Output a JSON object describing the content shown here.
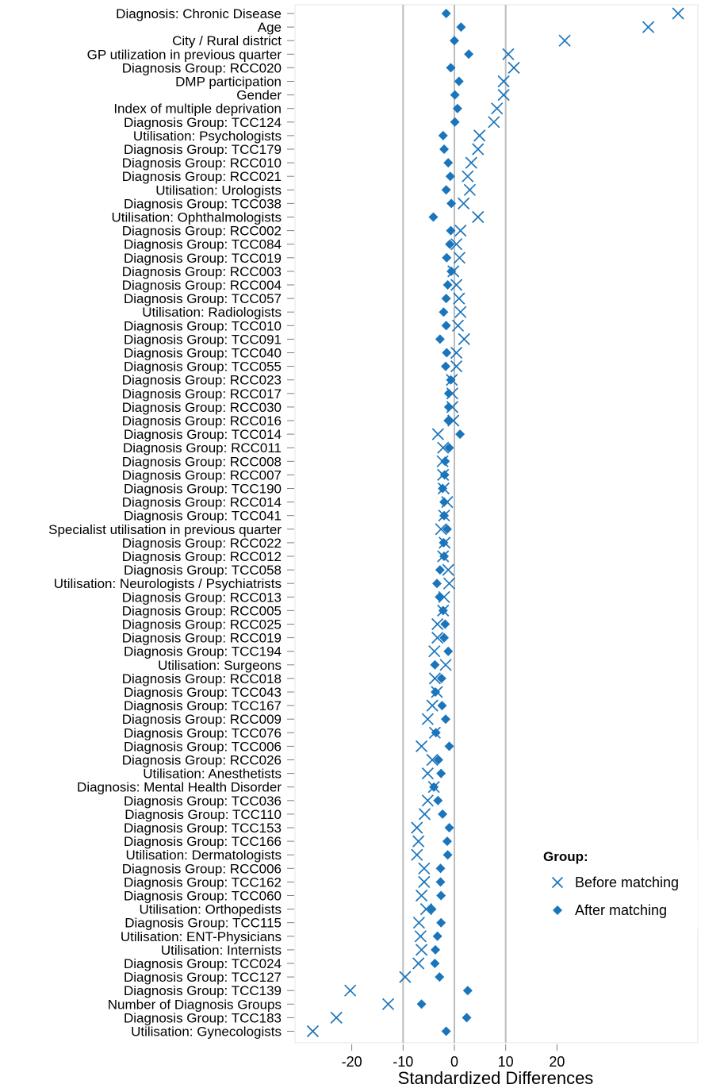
{
  "chart_data": {
    "type": "scatter",
    "xlabel": "Standardized Differences",
    "xticks": [
      -20,
      -10,
      0,
      10,
      20
    ],
    "xlim": [
      -30,
      46
    ],
    "reference_lines": [
      -10,
      0,
      10
    ],
    "colors": {
      "marker": "#1b75bb",
      "refline": "#bdbdbd",
      "tick": "#7f7f7f"
    },
    "legend": {
      "title": "Group:",
      "position": "right",
      "entries": [
        {
          "label": "Before matching",
          "marker": "x"
        },
        {
          "label": "After matching",
          "marker": "diamond"
        }
      ]
    },
    "categories": [
      "Diagnosis: Chronic Disease",
      "Age",
      "City / Rural district",
      "GP utilization in previous quarter",
      "Diagnosis Group: RCC020",
      "DMP participation",
      "Gender",
      "Index of multiple deprivation",
      "Diagnosis Group: TCC124",
      "Utilisation: Psychologists",
      "Diagnosis Group: TCC179",
      "Diagnosis Group: RCC010",
      "Diagnosis Group: RCC021",
      "Utilisation: Urologists",
      "Diagnosis Group: TCC038",
      "Utilisation: Ophthalmologists",
      "Diagnosis Group: RCC002",
      "Diagnosis Group: TCC084",
      "Diagnosis Group: TCC019",
      "Diagnosis Group: RCC003",
      "Diagnosis Group: RCC004",
      "Diagnosis Group: TCC057",
      "Utilisation: Radiologists",
      "Diagnosis Group: TCC010",
      "Diagnosis Group: TCC091",
      "Diagnosis Group: TCC040",
      "Diagnosis Group: TCC055",
      "Diagnosis Group: RCC023",
      "Diagnosis Group: RCC017",
      "Diagnosis Group: RCC030",
      "Diagnosis Group: RCC016",
      "Diagnosis Group: TCC014",
      "Diagnosis Group: RCC011",
      "Diagnosis Group: RCC008",
      "Diagnosis Group: RCC007",
      "Diagnosis Group: TCC190",
      "Diagnosis Group: RCC014",
      "Diagnosis Group: TCC041",
      "Specialist utilisation in previous quarter",
      "Diagnosis Group: RCC022",
      "Diagnosis Group: RCC012",
      "Diagnosis Group: TCC058",
      "Utilisation: Neurologists / Psychiatrists",
      "Diagnosis Group: RCC013",
      "Diagnosis Group: RCC005",
      "Diagnosis Group: RCC025",
      "Diagnosis Group: RCC019",
      "Diagnosis Group: TCC194",
      "Utilisation: Surgeons",
      "Diagnosis Group: RCC018",
      "Diagnosis Group: TCC043",
      "Diagnosis Group: TCC167",
      "Diagnosis Group: RCC009",
      "Diagnosis Group: TCC076",
      "Diagnosis Group: TCC006",
      "Diagnosis Group: RCC026",
      "Utilisation: Anesthetists",
      "Diagnosis: Mental Health Disorder",
      "Diagnosis Group: TCC036",
      "Diagnosis Group: TCC110",
      "Diagnosis Group: TCC153",
      "Diagnosis Group: TCC166",
      "Utilisation: Dermatologists",
      "Diagnosis Group: RCC006",
      "Diagnosis Group: TCC162",
      "Diagnosis Group: TCC060",
      "Utilisation: Orthopedists",
      "Diagnosis Group: TCC115",
      "Utilisation: ENT-Physicians",
      "Utilisation: Internists",
      "Diagnosis Group: TCC024",
      "Diagnosis Group: TCC127",
      "Diagnosis Group: TCC139",
      "Number of Diagnosis Groups",
      "Diagnosis Group: TCC183",
      "Utilisation: Gynecologists"
    ],
    "series": [
      {
        "name": "Before matching",
        "values": [
          43.6,
          37.8,
          21.5,
          10.5,
          11.6,
          9.6,
          9.6,
          8.3,
          7.7,
          4.9,
          4.6,
          3.3,
          2.6,
          3.0,
          1.8,
          4.6,
          1.2,
          0.4,
          1.0,
          -0.2,
          0.4,
          0.9,
          1.2,
          0.7,
          1.9,
          0.4,
          0.4,
          -0.5,
          -0.4,
          -0.4,
          -0.2,
          -3.2,
          -2.2,
          -2.3,
          -2.2,
          -2.1,
          -1.4,
          -2.0,
          -2.6,
          -1.9,
          -2.2,
          -1.2,
          -1.0,
          -2.0,
          -2.2,
          -3.3,
          -3.3,
          -3.9,
          -1.7,
          -3.8,
          -3.4,
          -4.3,
          -5.2,
          -3.8,
          -6.4,
          -4.3,
          -5.2,
          -4.0,
          -5.2,
          -5.8,
          -7.3,
          -7.0,
          -7.3,
          -5.9,
          -5.9,
          -6.4,
          -5.5,
          -6.9,
          -6.6,
          -6.4,
          -7.0,
          -9.6,
          -20.3,
          -12.9,
          -23.0,
          -27.6
        ]
      },
      {
        "name": "After matching",
        "values": [
          -1.6,
          1.3,
          0.0,
          2.8,
          -0.7,
          0.9,
          0.1,
          0.6,
          0.1,
          -2.2,
          -2.0,
          -1.2,
          -0.8,
          -1.6,
          -0.6,
          -4.1,
          -0.7,
          -0.9,
          -1.5,
          -0.6,
          -1.3,
          -1.6,
          -2.1,
          -1.6,
          -2.8,
          -1.5,
          -1.7,
          -0.7,
          -1.1,
          -1.1,
          -1.2,
          1.1,
          -1.0,
          -1.8,
          -1.9,
          -2.3,
          -2.0,
          -2.0,
          -1.4,
          -2.1,
          -2.0,
          -2.8,
          -3.4,
          -2.9,
          -2.2,
          -1.8,
          -2.0,
          -1.2,
          -3.8,
          -2.5,
          -3.7,
          -2.4,
          -1.7,
          -3.6,
          -1.0,
          -3.1,
          -2.6,
          -4.0,
          -3.2,
          -2.3,
          -1.0,
          -1.4,
          -1.3,
          -2.7,
          -2.7,
          -2.6,
          -4.4,
          -2.6,
          -3.3,
          -3.7,
          -3.8,
          -2.9,
          2.6,
          -6.4,
          2.4,
          -1.6
        ]
      }
    ]
  }
}
